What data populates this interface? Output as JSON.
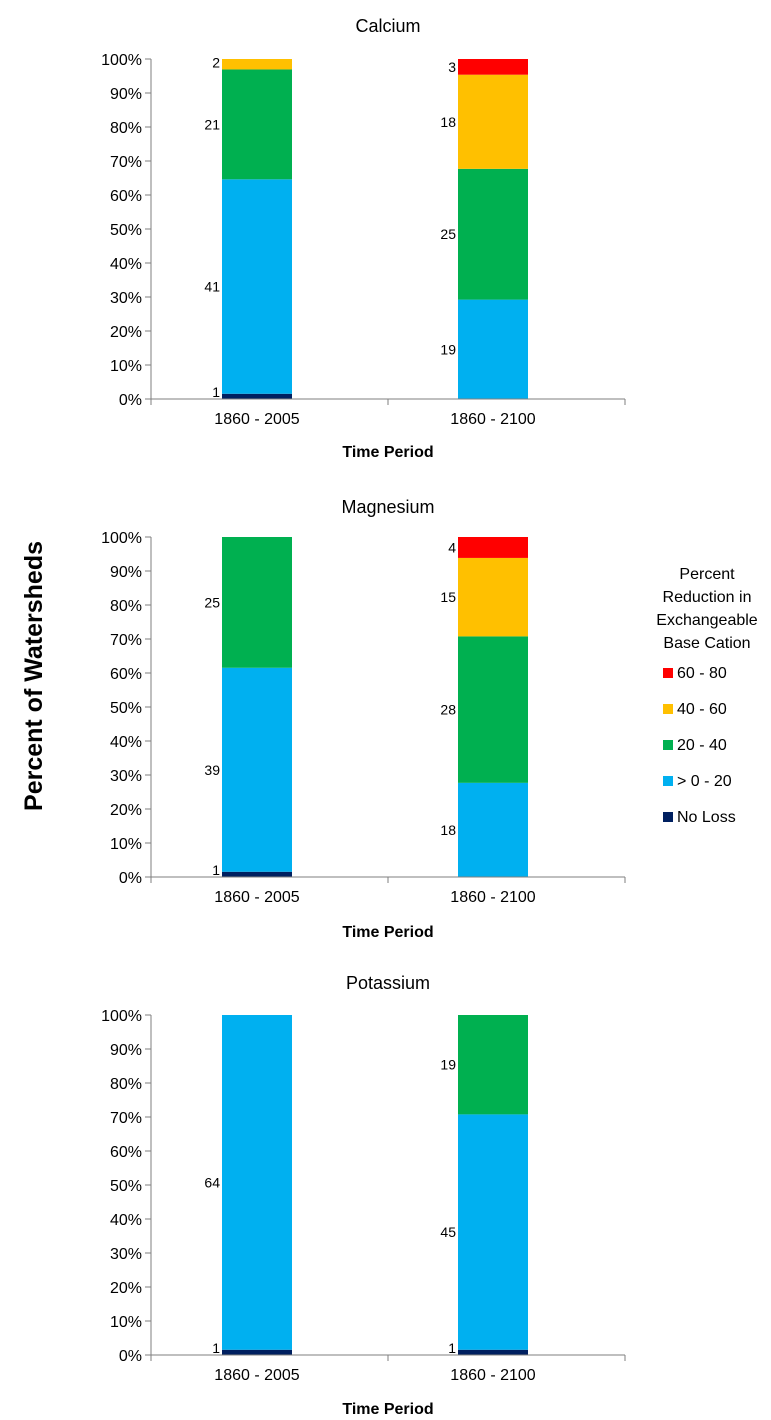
{
  "shared_ylabel": "Percent of Watersheds",
  "legend": {
    "title_lines": [
      "Percent",
      "Reduction in",
      "Exchangeable",
      "Base Cation"
    ],
    "items": [
      {
        "label": "60 - 80",
        "color": "#ff0000"
      },
      {
        "label": "40 - 60",
        "color": "#ffc000"
      },
      {
        "label": "20 - 40",
        "color": "#00b050"
      },
      {
        "label": "> 0 - 20",
        "color": "#00b0f0"
      },
      {
        "label": "No Loss",
        "color": "#002060"
      }
    ]
  },
  "chart_data": [
    {
      "type": "bar",
      "stacked": "percent",
      "title": "Calcium",
      "xlabel": "Time Period",
      "ylabel": "Percent of Watersheds",
      "ylim": [
        0,
        100
      ],
      "yticks": [
        "0%",
        "10%",
        "20%",
        "30%",
        "40%",
        "50%",
        "60%",
        "70%",
        "80%",
        "90%",
        "100%"
      ],
      "categories": [
        "1860 - 2005",
        "1860 - 2100"
      ],
      "series": [
        {
          "name": "No Loss",
          "color": "#002060",
          "values": [
            1,
            0
          ]
        },
        {
          "name": "> 0 - 20",
          "color": "#00b0f0",
          "values": [
            41,
            19
          ]
        },
        {
          "name": "20 - 40",
          "color": "#00b050",
          "values": [
            21,
            25
          ]
        },
        {
          "name": "40 - 60",
          "color": "#ffc000",
          "values": [
            2,
            18
          ]
        },
        {
          "name": "60 - 80",
          "color": "#ff0000",
          "values": [
            0,
            3
          ]
        }
      ]
    },
    {
      "type": "bar",
      "stacked": "percent",
      "title": "Magnesium",
      "xlabel": "Time Period",
      "ylabel": "Percent of Watersheds",
      "ylim": [
        0,
        100
      ],
      "yticks": [
        "0%",
        "10%",
        "20%",
        "30%",
        "40%",
        "50%",
        "60%",
        "70%",
        "80%",
        "90%",
        "100%"
      ],
      "categories": [
        "1860 - 2005",
        "1860 - 2100"
      ],
      "series": [
        {
          "name": "No Loss",
          "color": "#002060",
          "values": [
            1,
            0
          ]
        },
        {
          "name": "> 0 - 20",
          "color": "#00b0f0",
          "values": [
            39,
            18
          ]
        },
        {
          "name": "20 - 40",
          "color": "#00b050",
          "values": [
            25,
            28
          ]
        },
        {
          "name": "40 - 60",
          "color": "#ffc000",
          "values": [
            0,
            15
          ]
        },
        {
          "name": "60 - 80",
          "color": "#ff0000",
          "values": [
            0,
            4
          ]
        }
      ]
    },
    {
      "type": "bar",
      "stacked": "percent",
      "title": "Potassium",
      "xlabel": "Time Period",
      "ylabel": "Percent of Watersheds",
      "ylim": [
        0,
        100
      ],
      "yticks": [
        "0%",
        "10%",
        "20%",
        "30%",
        "40%",
        "50%",
        "60%",
        "70%",
        "80%",
        "90%",
        "100%"
      ],
      "categories": [
        "1860 - 2005",
        "1860 - 2100"
      ],
      "series": [
        {
          "name": "No Loss",
          "color": "#002060",
          "values": [
            1,
            1
          ]
        },
        {
          "name": "> 0 - 20",
          "color": "#00b0f0",
          "values": [
            64,
            45
          ]
        },
        {
          "name": "20 - 40",
          "color": "#00b050",
          "values": [
            0,
            19
          ]
        },
        {
          "name": "40 - 60",
          "color": "#ffc000",
          "values": [
            0,
            0
          ]
        },
        {
          "name": "60 - 80",
          "color": "#ff0000",
          "values": [
            0,
            0
          ]
        }
      ]
    }
  ]
}
